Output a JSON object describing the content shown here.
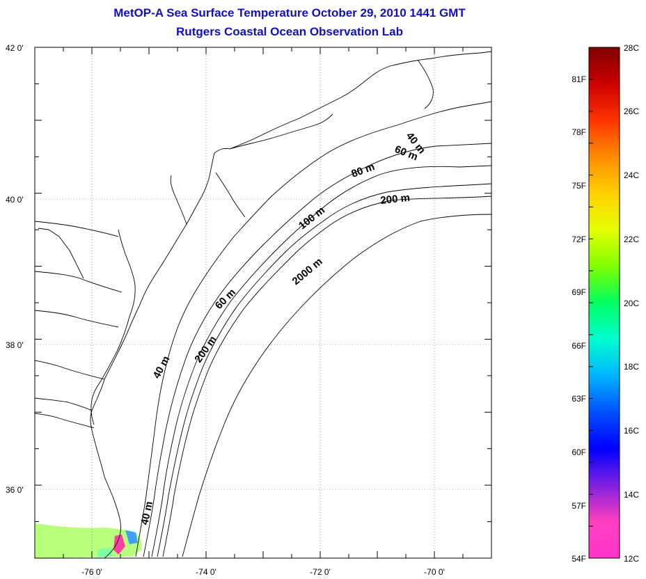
{
  "title": {
    "line1": "MetOP-A Sea Surface Temperature October 29, 2010 1441 GMT",
    "line2": "Rutgers Coastal Ocean Observation Lab"
  },
  "map": {
    "lon_range": [
      -77,
      -69
    ],
    "lat_range": [
      35,
      42
    ],
    "lon_ticks": [
      "-76 0'",
      "-74 0'",
      "-72 0'",
      "-70 0'"
    ],
    "lat_ticks": [
      "42 0'",
      "40 0'",
      "38 0'",
      "36 0'"
    ],
    "gridlines": true,
    "land_color": "#ffffff",
    "ocean_color": "#ffffff",
    "coastline_color": "#000000"
  },
  "contours": [
    {
      "label": "40 m"
    },
    {
      "label": "60 m"
    },
    {
      "label": "80 m"
    },
    {
      "label": "100 m"
    },
    {
      "label": "200 m"
    },
    {
      "label": "2000 m"
    },
    {
      "label": "60 m"
    },
    {
      "label": "40 m"
    },
    {
      "label": "200 m"
    },
    {
      "label": "40 m"
    }
  ],
  "colorbar": {
    "celsius_labels": [
      "28C",
      "26C",
      "24C",
      "22C",
      "20C",
      "18C",
      "16C",
      "14C",
      "12C"
    ],
    "fahrenheit_labels": [
      "81F",
      "78F",
      "75F",
      "72F",
      "69F",
      "66F",
      "63F",
      "60F",
      "57F",
      "54F"
    ],
    "colors": [
      "#800000",
      "#cc0000",
      "#ff3300",
      "#ff8c00",
      "#ffd000",
      "#e6ff00",
      "#80ff00",
      "#00ff60",
      "#00ffd0",
      "#00b4ff",
      "#0050ff",
      "#0000ff",
      "#8020e0",
      "#ff40c0",
      "#ff33cc"
    ]
  },
  "sst_patch": {
    "colors": [
      "#b0ff70",
      "#c0ff60",
      "#80ffa0",
      "#ff40a0",
      "#40a0ff"
    ]
  }
}
